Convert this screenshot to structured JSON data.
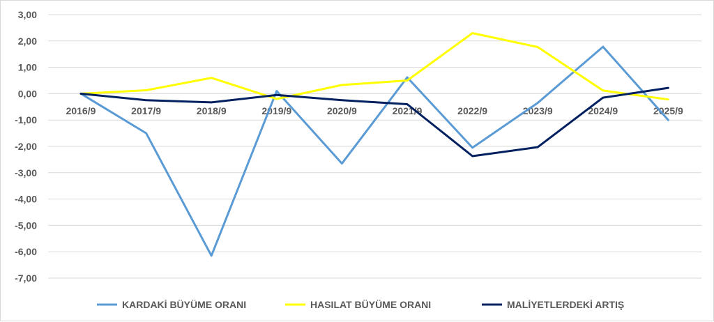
{
  "chart_data": {
    "type": "line",
    "title": "",
    "xlabel": "",
    "ylabel": "",
    "categories": [
      "2016/9",
      "2017/9",
      "2018/9",
      "2019/9",
      "2020/9",
      "2021/9",
      "2022/9",
      "2023/9",
      "2024/9",
      "2025/9"
    ],
    "ylim": [
      -7,
      3
    ],
    "yticks": [
      "3,00",
      "2,00",
      "1,00",
      "0,00",
      "-1,00",
      "-2,00",
      "-3,00",
      "-4,00",
      "-5,00",
      "-6,00",
      "-7,00"
    ],
    "grid": true,
    "legend_position": "bottom",
    "series": [
      {
        "name": "KARDAKİ BÜYÜME ORANI",
        "color": "#5b9bd5",
        "values": [
          0.0,
          -1.5,
          -6.15,
          0.1,
          -2.65,
          0.62,
          -2.05,
          -0.35,
          1.78,
          -1.0
        ]
      },
      {
        "name": "HASILAT BÜYÜME ORANI",
        "color": "#ffff00",
        "values": [
          0.0,
          0.13,
          0.6,
          -0.2,
          0.33,
          0.5,
          2.3,
          1.77,
          0.12,
          -0.22
        ]
      },
      {
        "name": "MALİYETLERDEKİ ARTIŞ",
        "color": "#002060",
        "values": [
          0.0,
          -0.25,
          -0.33,
          -0.05,
          -0.25,
          -0.4,
          -2.37,
          -2.03,
          -0.15,
          0.22
        ]
      }
    ]
  }
}
